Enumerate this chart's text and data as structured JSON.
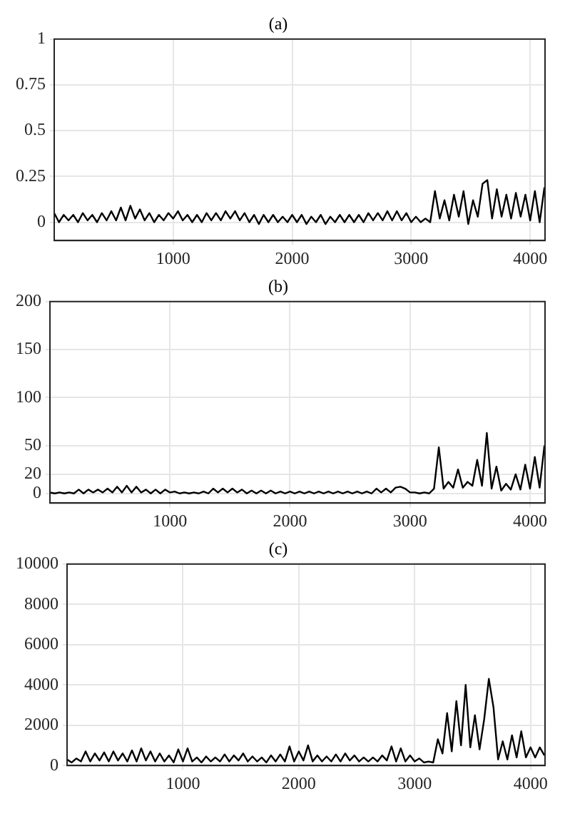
{
  "chart_data": [
    {
      "type": "line",
      "title": "(a)",
      "xlim": [
        0,
        4125
      ],
      "xticks": [
        1000,
        2000,
        3000,
        4000
      ],
      "ylim": [
        -0.1,
        1
      ],
      "yticks": [
        0,
        0.25,
        0.5,
        0.75,
        1
      ],
      "grid": true,
      "legend": false,
      "marker": "none",
      "line_style": "solid",
      "x": [
        0,
        40,
        80,
        120,
        160,
        200,
        240,
        280,
        320,
        360,
        400,
        440,
        480,
        520,
        560,
        600,
        640,
        680,
        720,
        760,
        800,
        840,
        880,
        920,
        960,
        1000,
        1040,
        1080,
        1120,
        1160,
        1200,
        1240,
        1280,
        1320,
        1360,
        1400,
        1440,
        1480,
        1520,
        1560,
        1600,
        1640,
        1680,
        1720,
        1760,
        1800,
        1840,
        1880,
        1920,
        1960,
        2000,
        2040,
        2080,
        2120,
        2160,
        2200,
        2240,
        2280,
        2320,
        2360,
        2400,
        2440,
        2480,
        2520,
        2560,
        2600,
        2640,
        2680,
        2720,
        2760,
        2800,
        2840,
        2880,
        2920,
        2960,
        3000,
        3040,
        3080,
        3120,
        3160,
        3200,
        3240,
        3280,
        3320,
        3360,
        3400,
        3440,
        3480,
        3520,
        3560,
        3600,
        3640,
        3680,
        3720,
        3760,
        3800,
        3840,
        3880,
        3920,
        3960,
        4000,
        4040,
        4080,
        4120
      ],
      "series": [
        {
          "color": "#000000",
          "values": [
            0.05,
            0.0,
            0.04,
            0.01,
            0.04,
            0.0,
            0.05,
            0.01,
            0.04,
            0.0,
            0.05,
            0.01,
            0.06,
            0.01,
            0.08,
            0.01,
            0.09,
            0.02,
            0.07,
            0.01,
            0.05,
            0.0,
            0.04,
            0.01,
            0.05,
            0.02,
            0.06,
            0.01,
            0.04,
            0.0,
            0.04,
            0.0,
            0.05,
            0.01,
            0.05,
            0.01,
            0.06,
            0.02,
            0.06,
            0.01,
            0.05,
            0.0,
            0.04,
            -0.01,
            0.04,
            0.0,
            0.04,
            0.0,
            0.03,
            0.0,
            0.04,
            0.0,
            0.04,
            -0.01,
            0.03,
            0.0,
            0.04,
            -0.01,
            0.03,
            0.0,
            0.04,
            0.0,
            0.04,
            0.0,
            0.04,
            0.0,
            0.05,
            0.01,
            0.05,
            0.01,
            0.06,
            0.01,
            0.06,
            0.01,
            0.05,
            0.0,
            0.03,
            0.0,
            0.02,
            0.0,
            0.17,
            0.02,
            0.12,
            0.01,
            0.15,
            0.03,
            0.17,
            -0.01,
            0.12,
            0.03,
            0.21,
            0.23,
            0.02,
            0.18,
            0.03,
            0.15,
            0.02,
            0.16,
            0.03,
            0.15,
            0.01,
            0.17,
            0.0,
            0.19
          ]
        }
      ]
    },
    {
      "type": "line",
      "title": "(b)",
      "xlim": [
        0,
        4125
      ],
      "xticks": [
        1000,
        2000,
        3000,
        4000
      ],
      "ylim": [
        -10,
        200
      ],
      "yticks": [
        0,
        20,
        50,
        100,
        150,
        200
      ],
      "grid": true,
      "legend": false,
      "marker": "none",
      "line_style": "solid",
      "x": [
        0,
        40,
        80,
        120,
        160,
        200,
        240,
        280,
        320,
        360,
        400,
        440,
        480,
        520,
        560,
        600,
        640,
        680,
        720,
        760,
        800,
        840,
        880,
        920,
        960,
        1000,
        1040,
        1080,
        1120,
        1160,
        1200,
        1240,
        1280,
        1320,
        1360,
        1400,
        1440,
        1480,
        1520,
        1560,
        1600,
        1640,
        1680,
        1720,
        1760,
        1800,
        1840,
        1880,
        1920,
        1960,
        2000,
        2040,
        2080,
        2120,
        2160,
        2200,
        2240,
        2280,
        2320,
        2360,
        2400,
        2440,
        2480,
        2520,
        2560,
        2600,
        2640,
        2680,
        2720,
        2760,
        2800,
        2840,
        2880,
        2920,
        2960,
        3000,
        3040,
        3080,
        3120,
        3160,
        3200,
        3240,
        3280,
        3320,
        3360,
        3400,
        3440,
        3480,
        3520,
        3560,
        3600,
        3640,
        3680,
        3720,
        3760,
        3800,
        3840,
        3880,
        3920,
        3960,
        4000,
        4040,
        4080,
        4120
      ],
      "series": [
        {
          "color": "#000000",
          "values": [
            1,
            0,
            1,
            0,
            1,
            0,
            4,
            0,
            4,
            1,
            4,
            1,
            5,
            1,
            7,
            1,
            8,
            1,
            7,
            1,
            4,
            0,
            4,
            0,
            4,
            1,
            2,
            0,
            1,
            0,
            1,
            0,
            2,
            0,
            5,
            1,
            5,
            1,
            5,
            1,
            4,
            0,
            3,
            0,
            3,
            0,
            3,
            0,
            2,
            0,
            2,
            0,
            2,
            0,
            2,
            0,
            2,
            0,
            2,
            0,
            2,
            0,
            2,
            0,
            2,
            0,
            2,
            0,
            5,
            1,
            5,
            1,
            6,
            7,
            5,
            1,
            1,
            0,
            1,
            0,
            5,
            48,
            5,
            12,
            6,
            25,
            6,
            12,
            8,
            35,
            8,
            63,
            5,
            28,
            3,
            10,
            4,
            20,
            4,
            30,
            5,
            38,
            6,
            50
          ]
        }
      ]
    },
    {
      "type": "line",
      "title": "(c)",
      "xlim": [
        0,
        4125
      ],
      "xticks": [
        1000,
        2000,
        3000,
        4000
      ],
      "ylim": [
        0,
        10000
      ],
      "yticks": [
        0,
        2000,
        4000,
        6000,
        8000,
        10000
      ],
      "grid": true,
      "legend": false,
      "marker": "none",
      "line_style": "solid",
      "x": [
        0,
        40,
        80,
        120,
        160,
        200,
        240,
        280,
        320,
        360,
        400,
        440,
        480,
        520,
        560,
        600,
        640,
        680,
        720,
        760,
        800,
        840,
        880,
        920,
        960,
        1000,
        1040,
        1080,
        1120,
        1160,
        1200,
        1240,
        1280,
        1320,
        1360,
        1400,
        1440,
        1480,
        1520,
        1560,
        1600,
        1640,
        1680,
        1720,
        1760,
        1800,
        1840,
        1880,
        1920,
        1960,
        2000,
        2040,
        2080,
        2120,
        2160,
        2200,
        2240,
        2280,
        2320,
        2360,
        2400,
        2440,
        2480,
        2520,
        2560,
        2600,
        2640,
        2680,
        2720,
        2760,
        2800,
        2840,
        2880,
        2920,
        2960,
        3000,
        3040,
        3080,
        3120,
        3160,
        3200,
        3240,
        3280,
        3320,
        3360,
        3400,
        3440,
        3480,
        3520,
        3560,
        3600,
        3640,
        3680,
        3720,
        3760,
        3800,
        3840,
        3880,
        3920,
        3960,
        4000,
        4040,
        4080,
        4120
      ],
      "series": [
        {
          "color": "#000000",
          "values": [
            300,
            150,
            350,
            200,
            700,
            200,
            600,
            250,
            650,
            200,
            700,
            250,
            600,
            200,
            750,
            200,
            850,
            250,
            700,
            200,
            600,
            200,
            500,
            150,
            800,
            200,
            850,
            200,
            400,
            150,
            450,
            200,
            400,
            200,
            550,
            200,
            500,
            250,
            600,
            200,
            450,
            200,
            400,
            150,
            500,
            200,
            550,
            200,
            950,
            200,
            700,
            250,
            1000,
            200,
            500,
            200,
            450,
            200,
            550,
            200,
            600,
            250,
            500,
            200,
            400,
            200,
            400,
            200,
            500,
            250,
            950,
            200,
            850,
            200,
            500,
            200,
            350,
            150,
            200,
            150,
            1300,
            600,
            2600,
            700,
            3200,
            1000,
            4000,
            900,
            2500,
            800,
            2300,
            4300,
            2900,
            300,
            1200,
            300,
            1500,
            400,
            1700,
            400,
            900,
            400,
            900,
            500
          ]
        }
      ]
    }
  ]
}
